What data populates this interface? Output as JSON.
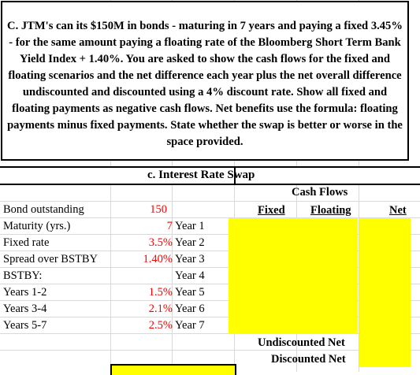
{
  "instructions": "C. JTM's can its $150M in bonds - maturing in 7 years and paying a fixed 3.45% - for the same amount paying a floating rate of the Bloomberg Short Term Bank Yield Index + 1.40%.  You are asked to show the cash flows for the fixed and floating scenarios and the net difference each year plus the net overall difference undiscounted and discounted using a 4% discount rate.  Show all fixed and floating payments as negative cash flows.  Net benefits use the formula: floating payments minus fixed payments. State whether the swap is better or worse in the space provided.",
  "section_title": "c. Interest Rate Swap",
  "cash_flows_header": "Cash Flows",
  "columns": {
    "fixed": "Fixed",
    "floating": "Floating",
    "net": "Net"
  },
  "inputs": [
    {
      "label": "Bond outstanding",
      "value": "150"
    },
    {
      "label": "Maturity (yrs.)",
      "value": "7"
    },
    {
      "label": "Fixed rate",
      "value": "3.5%"
    },
    {
      "label": "Spread over BSTBY",
      "value": "1.40%"
    },
    {
      "label": "BSTBY:",
      "value": ""
    },
    {
      "label": "Years 1-2",
      "value": "1.5%"
    },
    {
      "label": "Years 3-4",
      "value": "2.1%"
    },
    {
      "label": "Years 5-7",
      "value": "2.5%"
    }
  ],
  "years": [
    "Year 1",
    "Year 2",
    "Year 3",
    "Year 4",
    "Year 5",
    "Year 6",
    "Year 7"
  ],
  "totals": {
    "undiscounted": "Undiscounted Net",
    "discounted": "Discounted Net"
  },
  "colors": {
    "input_value": "#ff0000",
    "answer_fill": "#ffff00"
  }
}
